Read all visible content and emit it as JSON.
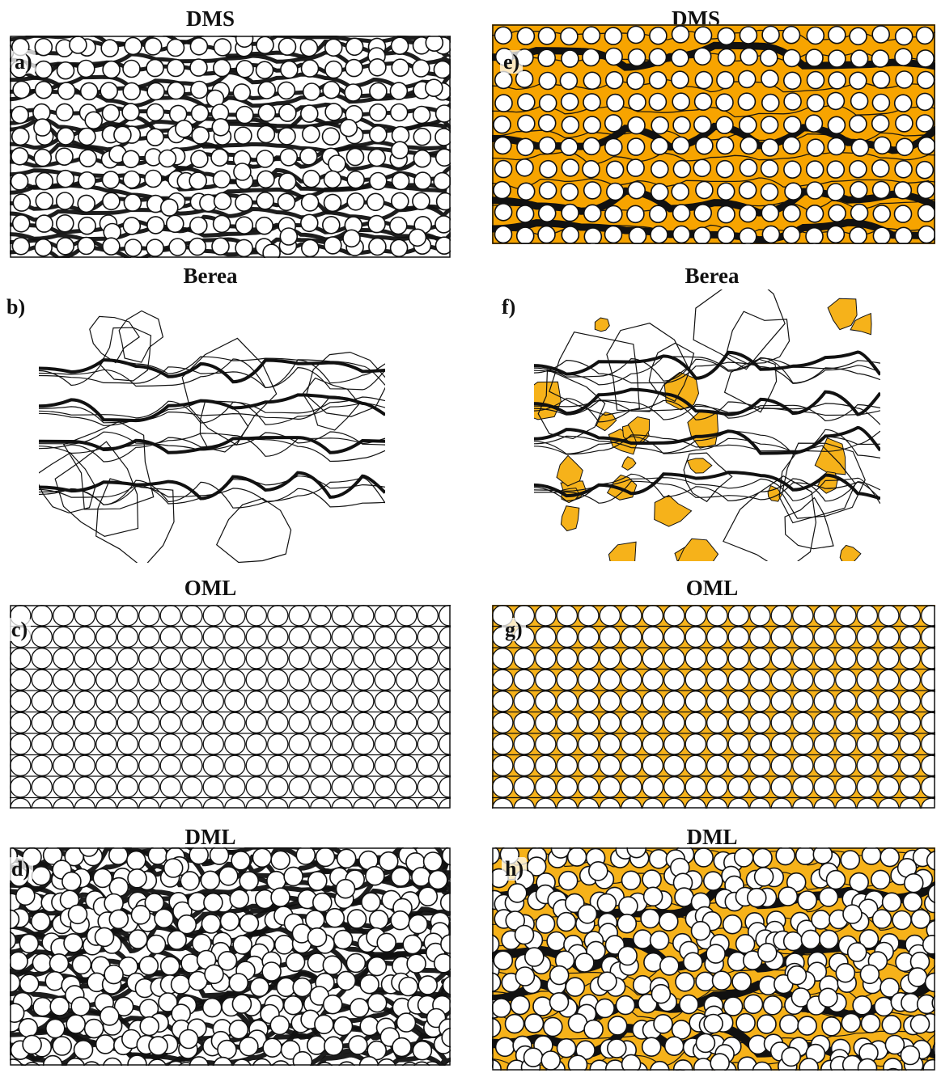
{
  "colors": {
    "stroke": "#111111",
    "grain": "#ffffff",
    "residual_oil_dms": "#f7a400",
    "residual_oil_other": "#f6b21a"
  },
  "panels": [
    {
      "letter": "a)",
      "title": "DMS",
      "kind": "dms",
      "oil": false
    },
    {
      "letter": "b)",
      "title": "Berea",
      "kind": "berea",
      "oil": false
    },
    {
      "letter": "c)",
      "title": "OML",
      "kind": "oml",
      "oil": false
    },
    {
      "letter": "d)",
      "title": "DML",
      "kind": "dml",
      "oil": false
    },
    {
      "letter": "e)",
      "title": "DMS",
      "kind": "dms",
      "oil": true
    },
    {
      "letter": "f)",
      "title": "Berea",
      "kind": "berea",
      "oil": true
    },
    {
      "letter": "g)",
      "title": "OML",
      "kind": "oml",
      "oil": true
    },
    {
      "letter": "h)",
      "title": "DML",
      "kind": "dml",
      "oil": true
    }
  ]
}
